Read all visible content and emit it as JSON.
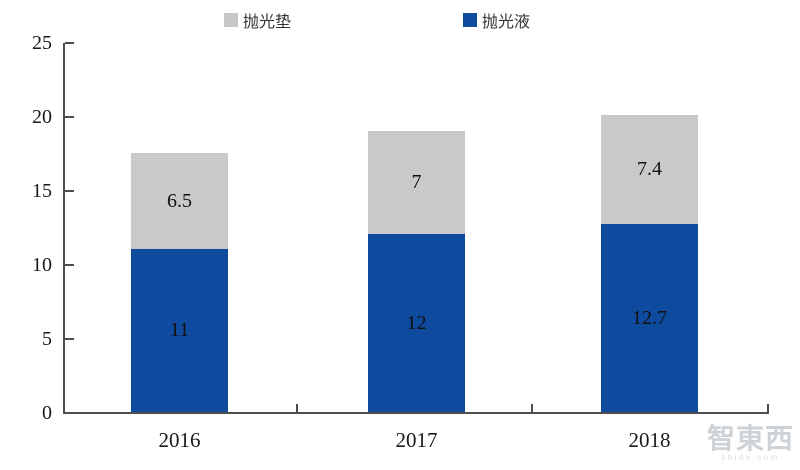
{
  "chart_data": {
    "type": "bar",
    "stacked": true,
    "categories": [
      "2016",
      "2017",
      "2018"
    ],
    "series": [
      {
        "name": "抛光液",
        "color": "#0e4a9e",
        "values": [
          11,
          12,
          12.7
        ]
      },
      {
        "name": "抛光垫",
        "color": "#c9c9c9",
        "values": [
          6.5,
          7,
          7.4
        ]
      }
    ],
    "totals": [
      17.5,
      19,
      20.1
    ],
    "ylim": [
      0,
      25
    ],
    "yticks": [
      0,
      5,
      10,
      15,
      20,
      25
    ],
    "xlabel": "",
    "ylabel": "",
    "title": "",
    "grid": false,
    "legend_position": "top",
    "data_labels": true
  },
  "legend": {
    "items": [
      {
        "label": "抛光垫",
        "color": "#c9c9c9"
      },
      {
        "label": "抛光液",
        "color": "#0e4a9e"
      }
    ]
  },
  "axis": {
    "color": "#4d4d4d"
  },
  "watermark": {
    "title": "智東西",
    "subtitle": "zhidx.com"
  }
}
